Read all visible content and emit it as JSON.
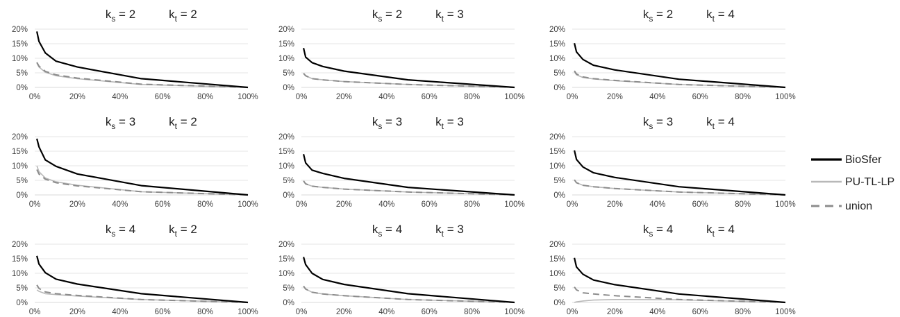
{
  "chart_data": {
    "type": "line",
    "x": [
      1,
      2,
      5,
      10,
      20,
      50,
      100
    ],
    "x_tick_labels": [
      "0%",
      "20%",
      "40%",
      "60%",
      "80%",
      "100%"
    ],
    "y_tick_labels": [
      "0%",
      "5%",
      "10%",
      "15%",
      "20%"
    ],
    "xlim": [
      0,
      100
    ],
    "ylim": [
      0,
      20
    ],
    "grid": true,
    "legend_position": "right",
    "series_styles": [
      {
        "name": "BioSfer",
        "color": "#000000",
        "dash": "solid",
        "width": 2.2
      },
      {
        "name": "PU-TL-LP",
        "color": "#b8b8b8",
        "dash": "solid",
        "width": 1.6
      },
      {
        "name": "union",
        "color": "#8c8c8c",
        "dash": "dashed",
        "width": 2
      }
    ],
    "panels": [
      {
        "ks": "2",
        "kt": "2",
        "series": [
          {
            "name": "BioSfer",
            "values": [
              19.2,
              15.8,
              11.8,
              9.0,
              7.0,
              3.0,
              0
            ]
          },
          {
            "name": "PU-TL-LP",
            "values": [
              8.3,
              7.0,
              5.2,
              4.0,
              3.0,
              1.0,
              0
            ]
          },
          {
            "name": "union",
            "values": [
              8.6,
              7.3,
              5.5,
              4.3,
              3.2,
              1.1,
              0
            ]
          }
        ]
      },
      {
        "ks": "2",
        "kt": "3",
        "series": [
          {
            "name": "BioSfer",
            "values": [
              13.5,
              10.4,
              8.5,
              7.2,
              5.6,
              2.6,
              0
            ]
          },
          {
            "name": "PU-TL-LP",
            "values": [
              4.8,
              4.0,
              3.0,
              2.6,
              2.0,
              1.0,
              0
            ]
          },
          {
            "name": "union",
            "values": [
              4.8,
              4.0,
              3.0,
              2.6,
              2.0,
              1.0,
              0
            ]
          }
        ]
      },
      {
        "ks": "2",
        "kt": "4",
        "series": [
          {
            "name": "BioSfer",
            "values": [
              15.2,
              12.2,
              9.6,
              7.6,
              6.0,
              2.8,
              0
            ]
          },
          {
            "name": "PU-TL-LP",
            "values": [
              5.4,
              4.3,
              3.4,
              2.9,
              2.3,
              1.0,
              0
            ]
          },
          {
            "name": "union",
            "values": [
              5.7,
              4.6,
              3.6,
              3.0,
              2.4,
              1.0,
              0
            ]
          }
        ]
      },
      {
        "ks": "3",
        "kt": "2",
        "series": [
          {
            "name": "BioSfer",
            "values": [
              19.3,
              16.5,
              12.0,
              9.8,
              7.2,
              3.2,
              0
            ]
          },
          {
            "name": "PU-TL-LP",
            "values": [
              10.0,
              8.0,
              5.8,
              4.5,
              3.3,
              1.1,
              0
            ]
          },
          {
            "name": "union",
            "values": [
              8.7,
              7.2,
              5.4,
              4.2,
              3.1,
              1.1,
              0
            ]
          }
        ]
      },
      {
        "ks": "3",
        "kt": "3",
        "series": [
          {
            "name": "BioSfer",
            "values": [
              14.0,
              11.0,
              8.5,
              7.4,
              5.7,
              2.6,
              0
            ]
          },
          {
            "name": "PU-TL-LP",
            "values": [
              4.8,
              3.8,
              3.0,
              2.6,
              2.0,
              1.0,
              0
            ]
          },
          {
            "name": "union",
            "values": [
              4.8,
              3.8,
              3.0,
              2.6,
              2.0,
              1.0,
              0
            ]
          }
        ]
      },
      {
        "ks": "3",
        "kt": "4",
        "series": [
          {
            "name": "BioSfer",
            "values": [
              15.3,
              12.2,
              9.6,
              7.6,
              6.0,
              2.8,
              0
            ]
          },
          {
            "name": "PU-TL-LP",
            "values": [
              5.2,
              4.2,
              3.3,
              2.8,
              2.2,
              1.0,
              0
            ]
          },
          {
            "name": "union",
            "values": [
              5.2,
              4.2,
              3.3,
              2.8,
              2.2,
              1.0,
              0
            ]
          }
        ]
      },
      {
        "ks": "4",
        "kt": "2",
        "series": [
          {
            "name": "BioSfer",
            "values": [
              16.0,
              13.2,
              10.2,
              8.0,
              6.3,
              3.0,
              0
            ]
          },
          {
            "name": "PU-TL-LP",
            "values": [
              4.3,
              3.8,
              3.0,
              2.7,
              2.2,
              1.0,
              0
            ]
          },
          {
            "name": "union",
            "values": [
              6.0,
              4.8,
              3.6,
              3.0,
              2.4,
              1.0,
              0
            ]
          }
        ]
      },
      {
        "ks": "4",
        "kt": "3",
        "series": [
          {
            "name": "BioSfer",
            "values": [
              15.6,
              13.0,
              10.0,
              7.9,
              6.2,
              3.0,
              0
            ]
          },
          {
            "name": "PU-TL-LP",
            "values": [
              5.6,
              4.6,
              3.5,
              2.9,
              2.3,
              1.0,
              0
            ]
          },
          {
            "name": "union",
            "values": [
              5.6,
              4.6,
              3.5,
              2.9,
              2.3,
              1.0,
              0
            ]
          }
        ]
      },
      {
        "ks": "4",
        "kt": "4",
        "series": [
          {
            "name": "BioSfer",
            "values": [
              15.3,
              12.2,
              9.7,
              7.7,
              6.1,
              2.9,
              0
            ]
          },
          {
            "name": "PU-TL-LP",
            "values": [
              0.0,
              0.2,
              0.5,
              0.8,
              1.0,
              0.9,
              0
            ]
          },
          {
            "name": "union",
            "values": [
              5.3,
              4.3,
              3.3,
              2.9,
              2.3,
              1.0,
              0
            ]
          }
        ]
      }
    ]
  },
  "legend": {
    "items": [
      {
        "label": "BioSfer"
      },
      {
        "label": "PU-TL-LP"
      },
      {
        "label": "union"
      }
    ]
  }
}
